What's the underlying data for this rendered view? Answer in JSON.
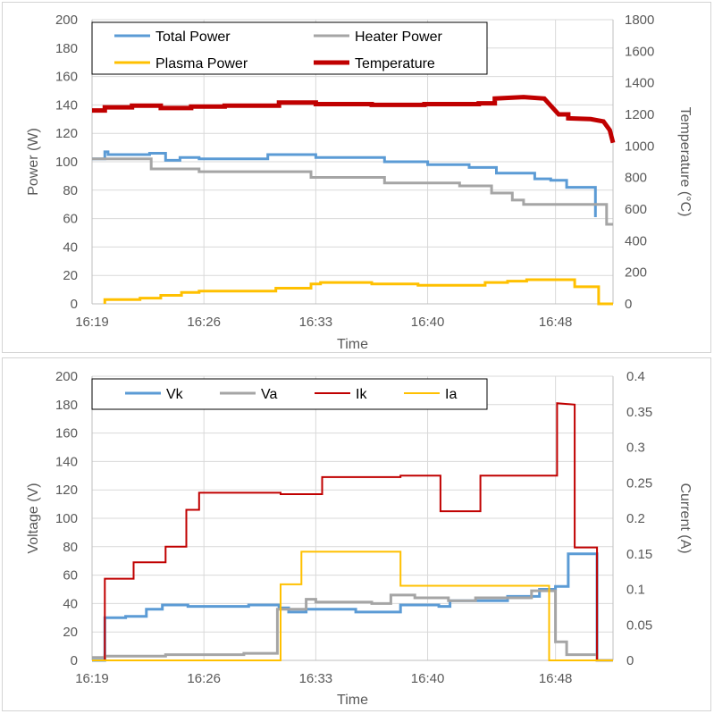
{
  "chart_data": [
    {
      "type": "line",
      "xlabel": "Time",
      "ylabel": "Power (W)",
      "y2label": "Temperature (°C)",
      "x_ticks": [
        "16:19",
        "16:26",
        "16:33",
        "16:40",
        "16:48"
      ],
      "y_ticks": [
        "0",
        "20",
        "40",
        "60",
        "80",
        "100",
        "120",
        "140",
        "160",
        "180",
        "200"
      ],
      "y2_ticks": [
        "0",
        "200",
        "400",
        "600",
        "800",
        "1000",
        "1200",
        "1400",
        "1600",
        "1800"
      ],
      "ylim": [
        0,
        200
      ],
      "y2lim": [
        0,
        1800
      ],
      "grid": true,
      "legend_position": "top-left",
      "series": [
        {
          "name": "Total Power",
          "color": "#5b9bd5",
          "axis": "left",
          "width": 3,
          "points": [
            [
              0,
              102
            ],
            [
              0.8,
              102
            ],
            [
              0.8,
              107
            ],
            [
              1.0,
              107
            ],
            [
              1.0,
              105
            ],
            [
              3.6,
              105
            ],
            [
              3.6,
              106
            ],
            [
              4.6,
              106
            ],
            [
              4.6,
              101
            ],
            [
              5.5,
              101
            ],
            [
              5.5,
              103
            ],
            [
              6.7,
              103
            ],
            [
              6.7,
              102
            ],
            [
              11.0,
              102
            ],
            [
              11.0,
              105
            ],
            [
              14.0,
              105
            ],
            [
              14.0,
              103
            ],
            [
              18.3,
              103
            ],
            [
              18.3,
              100
            ],
            [
              21.0,
              100
            ],
            [
              21.0,
              98
            ],
            [
              23.6,
              98
            ],
            [
              23.6,
              96
            ],
            [
              25.3,
              96
            ],
            [
              25.3,
              92
            ],
            [
              27.7,
              92
            ],
            [
              27.7,
              88
            ],
            [
              28.7,
              88
            ],
            [
              28.7,
              87
            ],
            [
              29.7,
              87
            ],
            [
              29.7,
              82
            ],
            [
              31.5,
              82
            ],
            [
              31.5,
              61
            ]
          ]
        },
        {
          "name": "Heater Power",
          "color": "#a5a5a5",
          "axis": "left",
          "width": 3,
          "points": [
            [
              0,
              102
            ],
            [
              3.7,
              102
            ],
            [
              3.7,
              95
            ],
            [
              6.7,
              95
            ],
            [
              6.7,
              93
            ],
            [
              13.7,
              93
            ],
            [
              13.7,
              89
            ],
            [
              18.3,
              89
            ],
            [
              18.3,
              85
            ],
            [
              23.0,
              85
            ],
            [
              23.0,
              83
            ],
            [
              25.0,
              83
            ],
            [
              25.0,
              78
            ],
            [
              26.3,
              78
            ],
            [
              26.3,
              73
            ],
            [
              27.0,
              73
            ],
            [
              27.0,
              70
            ],
            [
              32.2,
              70
            ],
            [
              32.2,
              56
            ],
            [
              32.6,
              56
            ]
          ]
        },
        {
          "name": "Plasma Power",
          "color": "#ffc000",
          "axis": "left",
          "width": 3,
          "points": [
            [
              0.8,
              0
            ],
            [
              0.8,
              3
            ],
            [
              3.0,
              3
            ],
            [
              3.0,
              4
            ],
            [
              4.3,
              4
            ],
            [
              4.3,
              6
            ],
            [
              5.6,
              6
            ],
            [
              5.6,
              8
            ],
            [
              6.7,
              8
            ],
            [
              6.7,
              9
            ],
            [
              11.5,
              9
            ],
            [
              11.5,
              11
            ],
            [
              13.7,
              11
            ],
            [
              13.7,
              14
            ],
            [
              14.3,
              14
            ],
            [
              14.3,
              15
            ],
            [
              17.5,
              15
            ],
            [
              17.5,
              14
            ],
            [
              20.4,
              14
            ],
            [
              20.4,
              13
            ],
            [
              24.6,
              13
            ],
            [
              24.6,
              15
            ],
            [
              26.0,
              15
            ],
            [
              26.0,
              16
            ],
            [
              27.2,
              16
            ],
            [
              27.2,
              17
            ],
            [
              30.2,
              17
            ],
            [
              30.2,
              12
            ],
            [
              31.7,
              12
            ],
            [
              31.7,
              0
            ],
            [
              32.6,
              0
            ]
          ]
        },
        {
          "name": "Temperature",
          "color": "#c00000",
          "axis": "right",
          "width": 5,
          "points": [
            [
              0,
              1225
            ],
            [
              0.8,
              1225
            ],
            [
              0.8,
              1245
            ],
            [
              2.5,
              1245
            ],
            [
              2.5,
              1255
            ],
            [
              4.3,
              1255
            ],
            [
              4.3,
              1240
            ],
            [
              6.2,
              1240
            ],
            [
              6.2,
              1250
            ],
            [
              8.3,
              1250
            ],
            [
              8.3,
              1255
            ],
            [
              11.7,
              1255
            ],
            [
              11.7,
              1275
            ],
            [
              14.0,
              1275
            ],
            [
              14.0,
              1265
            ],
            [
              17.5,
              1265
            ],
            [
              17.5,
              1260
            ],
            [
              20.8,
              1260
            ],
            [
              20.8,
              1265
            ],
            [
              24.2,
              1265
            ],
            [
              24.2,
              1270
            ],
            [
              25.2,
              1270
            ],
            [
              25.2,
              1300
            ],
            [
              27.0,
              1310
            ],
            [
              28.3,
              1300
            ],
            [
              29.2,
              1200
            ],
            [
              29.8,
              1200
            ],
            [
              29.8,
              1175
            ],
            [
              31.2,
              1170
            ],
            [
              32.0,
              1155
            ],
            [
              32.4,
              1100
            ],
            [
              32.6,
              1020
            ]
          ]
        }
      ]
    },
    {
      "type": "line",
      "xlabel": "Time",
      "ylabel": "Voltage (V)",
      "y2label": "Current (A)",
      "x_ticks": [
        "16:19",
        "16:26",
        "16:33",
        "16:40",
        "16:48"
      ],
      "y_ticks": [
        "0",
        "20",
        "40",
        "60",
        "80",
        "100",
        "120",
        "140",
        "160",
        "180",
        "200"
      ],
      "y2_ticks": [
        "0",
        "0.05",
        "0.1",
        "0.15",
        "0.2",
        "0.25",
        "0.3",
        "0.35",
        "0.4"
      ],
      "ylim": [
        0,
        200
      ],
      "y2lim": [
        0,
        0.4
      ],
      "grid": true,
      "legend_position": "top",
      "series": [
        {
          "name": "Vk",
          "color": "#5b9bd5",
          "axis": "left",
          "width": 3,
          "points": [
            [
              0,
              0
            ],
            [
              0.8,
              0
            ],
            [
              0.8,
              30
            ],
            [
              2.1,
              30
            ],
            [
              2.1,
              31
            ],
            [
              3.4,
              31
            ],
            [
              3.4,
              36
            ],
            [
              4.4,
              36
            ],
            [
              4.4,
              39
            ],
            [
              6.0,
              39
            ],
            [
              6.0,
              38
            ],
            [
              9.8,
              38
            ],
            [
              9.8,
              39
            ],
            [
              11.7,
              39
            ],
            [
              11.7,
              37
            ],
            [
              12.3,
              37
            ],
            [
              12.3,
              34
            ],
            [
              13.4,
              34
            ],
            [
              13.4,
              36
            ],
            [
              16.5,
              36
            ],
            [
              16.5,
              34
            ],
            [
              19.3,
              34
            ],
            [
              19.3,
              39
            ],
            [
              21.7,
              39
            ],
            [
              21.7,
              38
            ],
            [
              22.4,
              38
            ],
            [
              22.4,
              42
            ],
            [
              26.0,
              42
            ],
            [
              26.0,
              45
            ],
            [
              28.0,
              45
            ],
            [
              28.0,
              50
            ],
            [
              29.0,
              50
            ],
            [
              29.0,
              52
            ],
            [
              29.8,
              52
            ],
            [
              29.8,
              75
            ],
            [
              31.6,
              75
            ],
            [
              31.6,
              0
            ],
            [
              32.6,
              0
            ]
          ]
        },
        {
          "name": "Va",
          "color": "#a5a5a5",
          "axis": "left",
          "width": 3,
          "points": [
            [
              0,
              2
            ],
            [
              0.8,
              2
            ],
            [
              0.8,
              3
            ],
            [
              4.6,
              3
            ],
            [
              4.6,
              4
            ],
            [
              9.5,
              4
            ],
            [
              9.5,
              5
            ],
            [
              11.6,
              5
            ],
            [
              11.6,
              36
            ],
            [
              13.4,
              36
            ],
            [
              13.4,
              43
            ],
            [
              14.0,
              43
            ],
            [
              14.0,
              41
            ],
            [
              17.5,
              41
            ],
            [
              17.5,
              40
            ],
            [
              18.7,
              40
            ],
            [
              18.7,
              46
            ],
            [
              20.2,
              46
            ],
            [
              20.2,
              44
            ],
            [
              22.3,
              44
            ],
            [
              22.3,
              42
            ],
            [
              24.0,
              42
            ],
            [
              24.0,
              44
            ],
            [
              27.5,
              44
            ],
            [
              27.5,
              49
            ],
            [
              29.0,
              49
            ],
            [
              29.0,
              13
            ],
            [
              29.7,
              13
            ],
            [
              29.7,
              4
            ],
            [
              31.6,
              4
            ],
            [
              31.6,
              0
            ],
            [
              32.6,
              0
            ]
          ]
        },
        {
          "name": "Ik",
          "color": "#c00000",
          "axis": "right",
          "width": 2,
          "points": [
            [
              0,
              0
            ],
            [
              0.8,
              0
            ],
            [
              0.8,
              0.115
            ],
            [
              2.6,
              0.115
            ],
            [
              2.6,
              0.138
            ],
            [
              4.6,
              0.138
            ],
            [
              4.6,
              0.16
            ],
            [
              5.9,
              0.16
            ],
            [
              5.9,
              0.212
            ],
            [
              6.7,
              0.212
            ],
            [
              6.7,
              0.236
            ],
            [
              11.8,
              0.236
            ],
            [
              11.8,
              0.234
            ],
            [
              14.4,
              0.234
            ],
            [
              14.4,
              0.258
            ],
            [
              19.3,
              0.258
            ],
            [
              19.3,
              0.26
            ],
            [
              21.8,
              0.26
            ],
            [
              21.8,
              0.21
            ],
            [
              24.3,
              0.21
            ],
            [
              24.3,
              0.26
            ],
            [
              29.1,
              0.26
            ],
            [
              29.1,
              0.362
            ],
            [
              30.2,
              0.36
            ],
            [
              30.2,
              0.159
            ],
            [
              31.6,
              0.159
            ],
            [
              31.6,
              0
            ],
            [
              32.6,
              0
            ]
          ]
        },
        {
          "name": "Ia",
          "color": "#ffc000",
          "axis": "right",
          "width": 2,
          "points": [
            [
              0,
              0
            ],
            [
              11.8,
              0
            ],
            [
              11.8,
              0.107
            ],
            [
              13.1,
              0.107
            ],
            [
              13.1,
              0.153
            ],
            [
              19.3,
              0.153
            ],
            [
              19.3,
              0.105
            ],
            [
              28.6,
              0.105
            ],
            [
              28.6,
              0
            ],
            [
              32.6,
              0
            ]
          ]
        }
      ]
    }
  ]
}
